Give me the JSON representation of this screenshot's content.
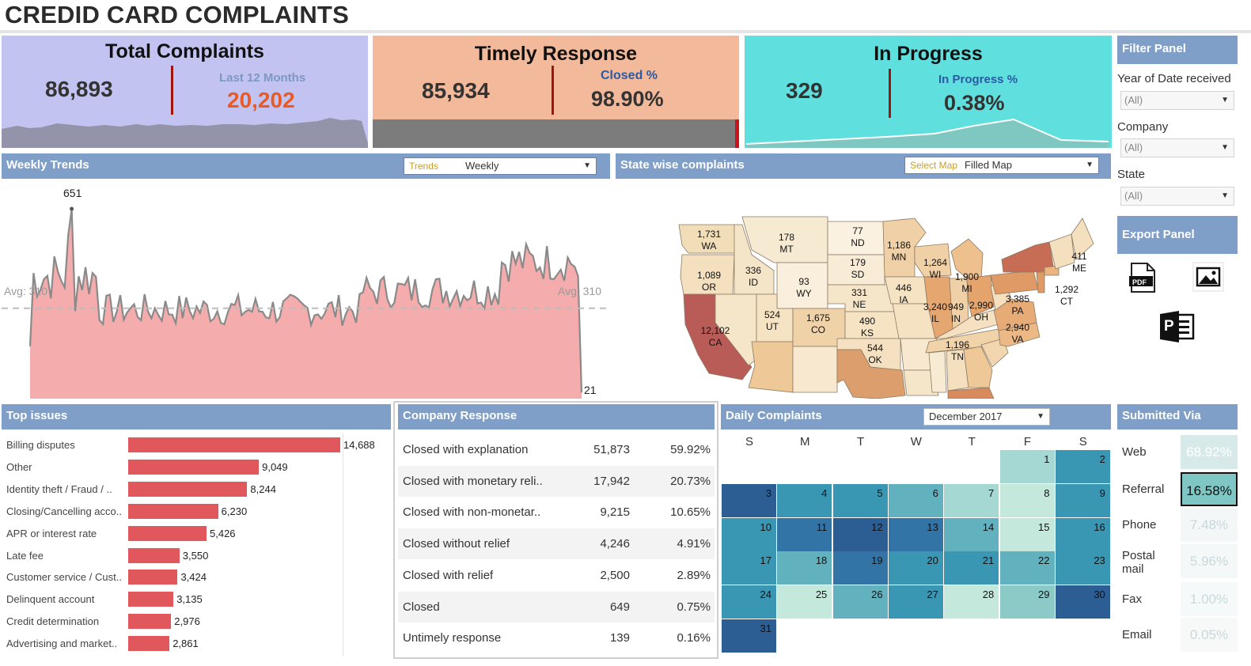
{
  "title": "CREDID CARD COMPLAINTS",
  "kpi": {
    "total": {
      "title": "Total Complaints",
      "value": "86,893",
      "sub_label": "Last 12 Months",
      "sub_value": "20,202"
    },
    "timely": {
      "title": "Timely Response",
      "value": "85,934",
      "sub_label": "Closed %",
      "sub_value": "98.90%",
      "closed_fraction": 0.989
    },
    "progress": {
      "title": "In Progress",
      "value": "329",
      "sub_label": "In Progress %",
      "sub_value": "0.38%"
    }
  },
  "weekly": {
    "header": "Weekly Trends",
    "dropdown_label": "Trends",
    "dropdown_value": "Weekly",
    "peak_label": "651",
    "end_label": "21",
    "avg_left": "Avg: 310",
    "avg_right": "Avg: 310",
    "avg": 310,
    "ymax": 700
  },
  "map": {
    "header": "State wise complaints",
    "dropdown_label": "Select Map",
    "dropdown_value": "Filled Map",
    "labels": [
      {
        "v": "1,731",
        "s": "WA"
      },
      {
        "v": "1,089",
        "s": "OR"
      },
      {
        "v": "12,102",
        "s": "CA"
      },
      {
        "v": "336",
        "s": "ID"
      },
      {
        "v": "178",
        "s": "MT"
      },
      {
        "v": "93",
        "s": "WY"
      },
      {
        "v": "524",
        "s": "UT"
      },
      {
        "v": "1,675",
        "s": "CO"
      },
      {
        "v": "77",
        "s": "ND"
      },
      {
        "v": "179",
        "s": "SD"
      },
      {
        "v": "331",
        "s": "NE"
      },
      {
        "v": "490",
        "s": "KS"
      },
      {
        "v": "544",
        "s": "OK"
      },
      {
        "v": "1,186",
        "s": "MN"
      },
      {
        "v": "446",
        "s": "IA"
      },
      {
        "v": "1,264",
        "s": "WI"
      },
      {
        "v": "3,240",
        "s": "IL"
      },
      {
        "v": "949",
        "s": "IN"
      },
      {
        "v": "1,900",
        "s": "MI"
      },
      {
        "v": "2,990",
        "s": "OH"
      },
      {
        "v": "3,385",
        "s": "PA"
      },
      {
        "v": "2,940",
        "s": "VA"
      },
      {
        "v": "1,196",
        "s": "TN"
      },
      {
        "v": "1,292",
        "s": "CT"
      },
      {
        "v": "411",
        "s": "ME"
      }
    ]
  },
  "filters": {
    "header": "Filter Panel",
    "year_label": "Year of Date received",
    "year_value": "(All)",
    "company_label": "Company",
    "company_value": "(All)",
    "state_label": "State",
    "state_value": "(All)"
  },
  "export": {
    "header": "Export Panel",
    "pdf_text": "PDF",
    "ppt_text": "P"
  },
  "issues": {
    "header": "Top issues",
    "max": 14688,
    "items": [
      {
        "label": "Billing disputes",
        "value": 14688,
        "text": "14,688"
      },
      {
        "label": "Other",
        "value": 9049,
        "text": "9,049"
      },
      {
        "label": "Identity theft / Fraud / ..",
        "value": 8244,
        "text": "8,244"
      },
      {
        "label": "Closing/Cancelling acco..",
        "value": 6230,
        "text": "6,230"
      },
      {
        "label": "APR or interest rate",
        "value": 5426,
        "text": "5,426"
      },
      {
        "label": "Late fee",
        "value": 3550,
        "text": "3,550"
      },
      {
        "label": "Customer service / Cust..",
        "value": 3424,
        "text": "3,424"
      },
      {
        "label": "Delinquent account",
        "value": 3135,
        "text": "3,135"
      },
      {
        "label": "Credit determination",
        "value": 2976,
        "text": "2,976"
      },
      {
        "label": "Advertising and market..",
        "value": 2861,
        "text": "2,861"
      }
    ]
  },
  "company_response": {
    "header": "Company Response",
    "rows": [
      {
        "name": "Closed with explanation",
        "count": "51,873",
        "pct": "59.92%"
      },
      {
        "name": "Closed with monetary reli..",
        "count": "17,942",
        "pct": "20.73%"
      },
      {
        "name": "Closed with non-monetar..",
        "count": "9,215",
        "pct": "10.65%"
      },
      {
        "name": "Closed without relief",
        "count": "4,246",
        "pct": "4.91%"
      },
      {
        "name": "Closed with relief",
        "count": "2,500",
        "pct": "2.89%"
      },
      {
        "name": "Closed",
        "count": "649",
        "pct": "0.75%"
      },
      {
        "name": "Untimely response",
        "count": "139",
        "pct": "0.16%"
      }
    ]
  },
  "daily": {
    "header": "Daily Complaints",
    "month": "December 2017",
    "weekdays": [
      "S",
      "M",
      "T",
      "W",
      "T",
      "F",
      "S"
    ],
    "first_weekday": 5,
    "days": [
      {
        "d": "1",
        "c": "#a6d8d3"
      },
      {
        "d": "2",
        "c": "#3a97b4"
      },
      {
        "d": "3",
        "c": "#2c5e94"
      },
      {
        "d": "4",
        "c": "#3a97b4"
      },
      {
        "d": "5",
        "c": "#3a97b4"
      },
      {
        "d": "6",
        "c": "#62b1bf"
      },
      {
        "d": "7",
        "c": "#a6d8d3"
      },
      {
        "d": "8",
        "c": "#c5e8dc"
      },
      {
        "d": "9",
        "c": "#3a97b4"
      },
      {
        "d": "10",
        "c": "#3a97b4"
      },
      {
        "d": "11",
        "c": "#3274a6"
      },
      {
        "d": "12",
        "c": "#2c5e94"
      },
      {
        "d": "13",
        "c": "#3274a6"
      },
      {
        "d": "14",
        "c": "#62b1bf"
      },
      {
        "d": "15",
        "c": "#c5e8dc"
      },
      {
        "d": "16",
        "c": "#3a97b4"
      },
      {
        "d": "17",
        "c": "#3a97b4"
      },
      {
        "d": "18",
        "c": "#62b1bf"
      },
      {
        "d": "19",
        "c": "#3274a6"
      },
      {
        "d": "20",
        "c": "#3a97b4"
      },
      {
        "d": "21",
        "c": "#3a97b4"
      },
      {
        "d": "22",
        "c": "#62b1bf"
      },
      {
        "d": "23",
        "c": "#3a97b4"
      },
      {
        "d": "24",
        "c": "#3a97b4"
      },
      {
        "d": "25",
        "c": "#c5e8dc"
      },
      {
        "d": "26",
        "c": "#62b1bf"
      },
      {
        "d": "27",
        "c": "#3a97b4"
      },
      {
        "d": "28",
        "c": "#c5e8dc"
      },
      {
        "d": "29",
        "c": "#8ccac8"
      },
      {
        "d": "30",
        "c": "#2c5e94"
      },
      {
        "d": "31",
        "c": "#2c5e94"
      }
    ]
  },
  "submitted": {
    "header": "Submitted Via",
    "rows": [
      {
        "label": "Web",
        "pct": "68.92%",
        "bg": "#d8e9ea",
        "fg": "#ffffff"
      },
      {
        "label": "Referral",
        "pct": "16.58%",
        "bg": "#7fc7c4",
        "fg": "#111111"
      },
      {
        "label": "Phone",
        "pct": "7.48%",
        "bg": "#f3f7f7",
        "fg": "#c9d8da"
      },
      {
        "label": "Postal mail",
        "pct": "5.96%",
        "bg": "#f4f8f8",
        "fg": "#c9d8da"
      },
      {
        "label": "Fax",
        "pct": "1.00%",
        "bg": "#f6f9f9",
        "fg": "#c9d8da"
      },
      {
        "label": "Email",
        "pct": "0.05%",
        "bg": "#f7f9f9",
        "fg": "#c9d8da"
      }
    ]
  },
  "colors": {
    "header_bg": "#7f9fc9",
    "total_bg": "#c2c3f1",
    "timely_bg": "#f2b99a",
    "progress_bg": "#5fe0df",
    "accent_red": "#a0140f",
    "orange_value": "#ea5a25",
    "trend_fill": "#f4acac"
  }
}
